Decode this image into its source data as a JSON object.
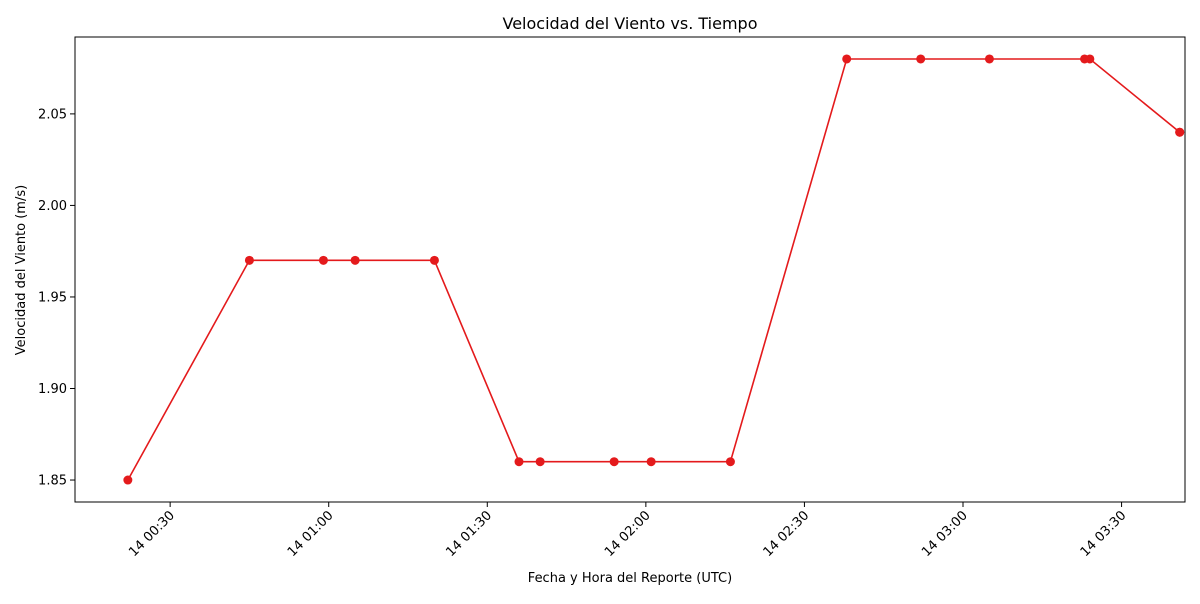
{
  "chart_data": {
    "type": "line",
    "title": "Velocidad del Viento vs. Tiempo",
    "xlabel": "Fecha y Hora del Reporte (UTC)",
    "ylabel": "Velocidad del Viento (m/s)",
    "xlim": [
      "00:12",
      "03:42"
    ],
    "ylim": [
      1.838,
      2.092
    ],
    "grid": false,
    "color": "#e41a1c",
    "marker": "circle",
    "x_ticks": [
      {
        "t": "00:30",
        "label": "14 00:30"
      },
      {
        "t": "01:00",
        "label": "14 01:00"
      },
      {
        "t": "01:30",
        "label": "14 01:30"
      },
      {
        "t": "02:00",
        "label": "14 02:00"
      },
      {
        "t": "02:30",
        "label": "14 02:30"
      },
      {
        "t": "03:00",
        "label": "14 03:00"
      },
      {
        "t": "03:30",
        "label": "14 03:30"
      }
    ],
    "y_ticks": [
      {
        "v": 1.85,
        "label": "1.85"
      },
      {
        "v": 1.9,
        "label": "1.90"
      },
      {
        "v": 1.95,
        "label": "1.95"
      },
      {
        "v": 2.0,
        "label": "2.00"
      },
      {
        "v": 2.05,
        "label": "2.05"
      }
    ],
    "points": [
      {
        "t": "00:22",
        "v": 1.85
      },
      {
        "t": "00:45",
        "v": 1.97
      },
      {
        "t": "00:59",
        "v": 1.97
      },
      {
        "t": "01:05",
        "v": 1.97
      },
      {
        "t": "01:20",
        "v": 1.97
      },
      {
        "t": "01:36",
        "v": 1.86
      },
      {
        "t": "01:40",
        "v": 1.86
      },
      {
        "t": "01:54",
        "v": 1.86
      },
      {
        "t": "02:01",
        "v": 1.86
      },
      {
        "t": "02:16",
        "v": 1.86
      },
      {
        "t": "02:38",
        "v": 2.08
      },
      {
        "t": "02:52",
        "v": 2.08
      },
      {
        "t": "03:05",
        "v": 2.08
      },
      {
        "t": "03:23",
        "v": 2.08
      },
      {
        "t": "03:24",
        "v": 2.08
      },
      {
        "t": "03:41",
        "v": 2.04
      },
      {
        "t": "03:41",
        "v": 2.04
      }
    ]
  }
}
